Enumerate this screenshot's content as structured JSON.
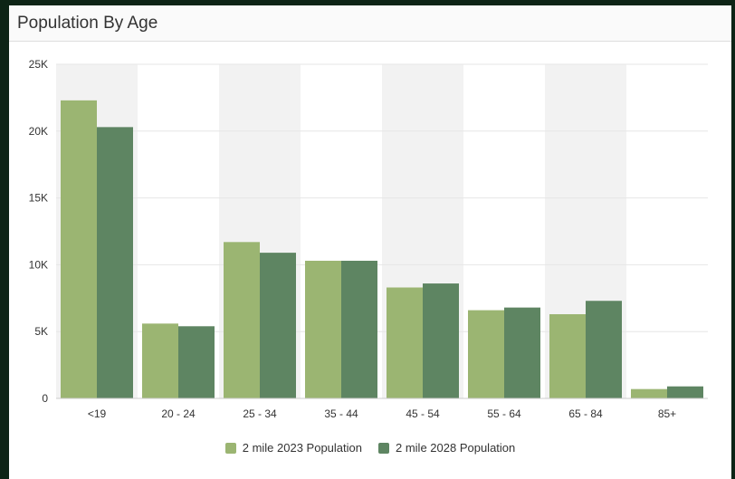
{
  "card": {
    "title": "Population By Age"
  },
  "colors": {
    "series_2023": "#9bb572",
    "series_2028": "#5e8562",
    "band": "#f2f2f2",
    "grid": "#e6e6e6"
  },
  "chart_data": {
    "type": "bar",
    "title": "Population By Age",
    "xlabel": "",
    "ylabel": "",
    "categories": [
      "<19",
      "20 - 24",
      "25 - 34",
      "35 - 44",
      "45 - 54",
      "55 - 64",
      "65 - 84",
      "85+"
    ],
    "series": [
      {
        "name": "2 mile 2023 Population",
        "values": [
          22300,
          5600,
          11700,
          10300,
          8300,
          6600,
          6300,
          700
        ]
      },
      {
        "name": "2 mile 2028 Population",
        "values": [
          20300,
          5400,
          10900,
          10300,
          8600,
          6800,
          7300,
          900
        ]
      }
    ],
    "ylim": [
      0,
      25000
    ],
    "yticks": [
      0,
      5000,
      10000,
      15000,
      20000,
      25000
    ],
    "ytick_labels": [
      "0",
      "5K",
      "10K",
      "15K",
      "20K",
      "25K"
    ],
    "grid": true,
    "legend_position": "bottom"
  }
}
